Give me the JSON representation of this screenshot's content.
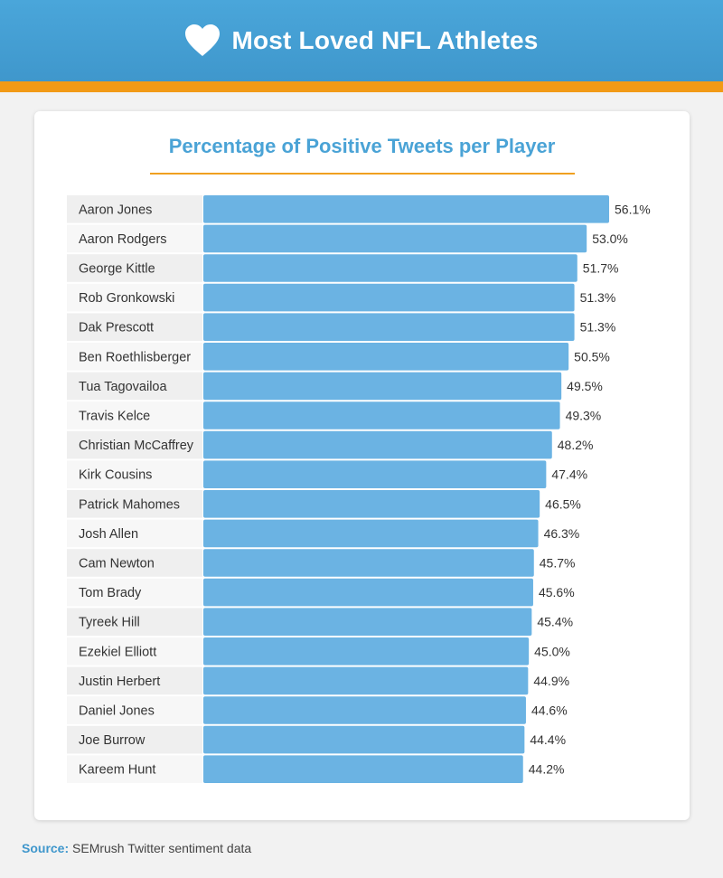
{
  "header": {
    "title": "Most Loved NFL Athletes",
    "icon": "heart-icon"
  },
  "colors": {
    "bar": "#6bb3e3",
    "accent": "#f29a16",
    "header": "#4aa6da"
  },
  "chart_data": {
    "type": "bar",
    "orientation": "horizontal",
    "title": "Percentage of Positive Tweets per Player",
    "categories": [
      "Aaron Jones",
      "Aaron Rodgers",
      "George Kittle",
      "Rob Gronkowski",
      "Dak Prescott",
      "Ben Roethlisberger",
      "Tua Tagovailoa",
      "Travis Kelce",
      "Christian McCaffrey",
      "Kirk Cousins",
      "Patrick Mahomes",
      "Josh Allen",
      "Cam Newton",
      "Tom Brady",
      "Tyreek Hill",
      "Ezekiel Elliott",
      "Justin Herbert",
      "Daniel Jones",
      "Joe Burrow",
      "Kareem Hunt"
    ],
    "values": [
      56.1,
      53.0,
      51.7,
      51.3,
      51.3,
      50.5,
      49.5,
      49.3,
      48.2,
      47.4,
      46.5,
      46.3,
      45.7,
      45.6,
      45.4,
      45.0,
      44.9,
      44.6,
      44.4,
      44.2
    ],
    "value_labels": [
      "56.1%",
      "53.0%",
      "51.7%",
      "51.3%",
      "51.3%",
      "50.5%",
      "49.5%",
      "49.3%",
      "48.2%",
      "47.4%",
      "46.5%",
      "46.3%",
      "45.7%",
      "45.6%",
      "45.4%",
      "45.0%",
      "44.9%",
      "44.6%",
      "44.4%",
      "44.2%"
    ],
    "xlim": [
      0,
      56.1
    ],
    "grid": false,
    "legend": "none"
  },
  "footer": {
    "source_label": "Source:",
    "source_text": "SEMrush Twitter sentiment data"
  }
}
